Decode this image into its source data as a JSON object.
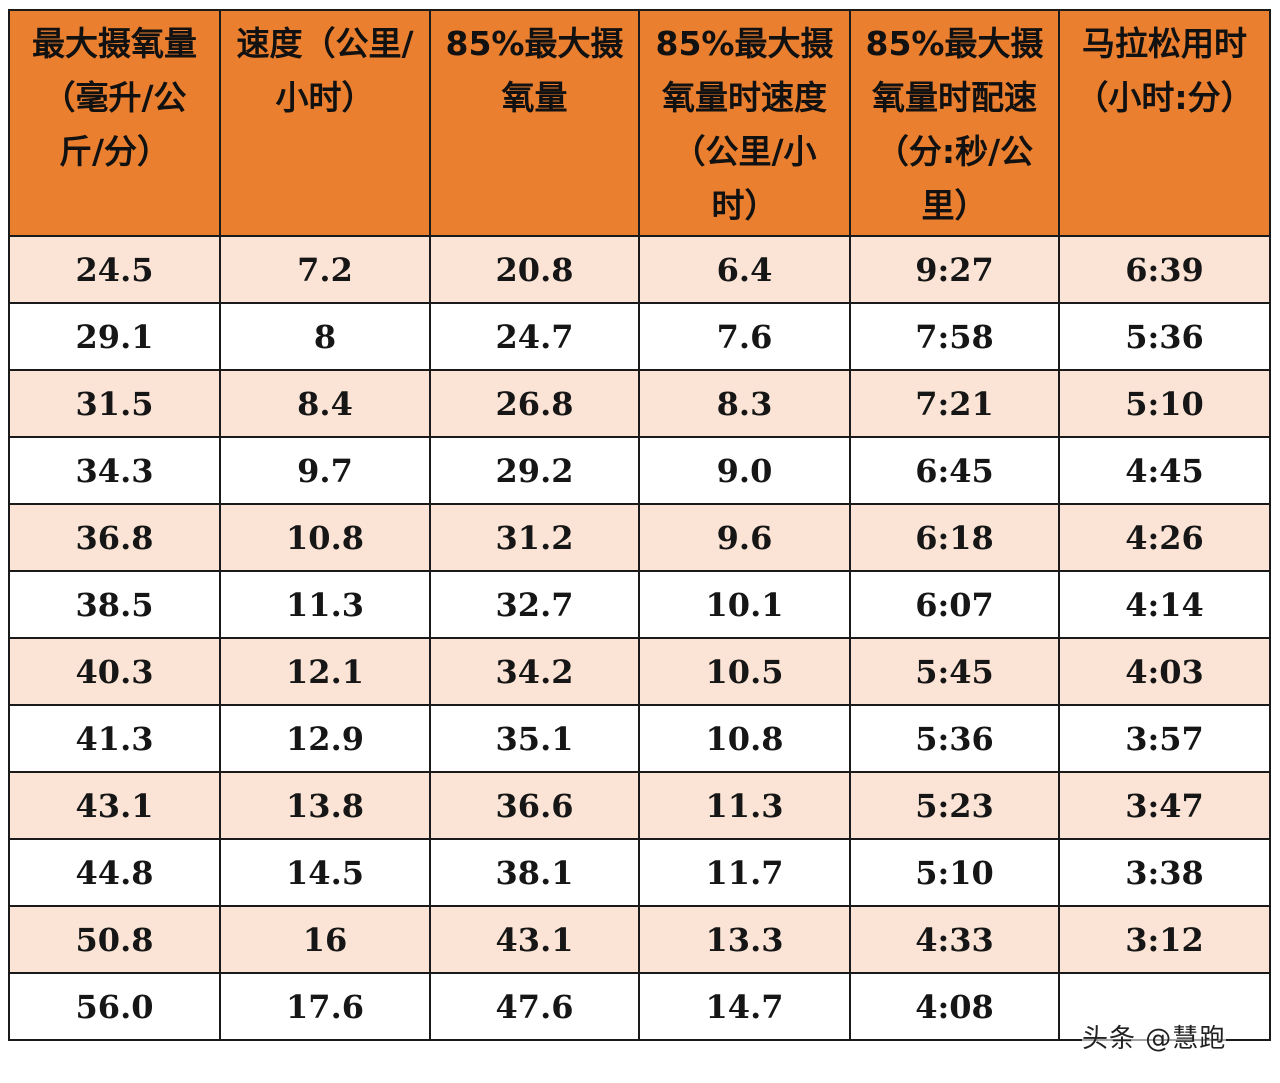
{
  "table": {
    "headers": [
      "最大摄氧量（毫升/公斤/分）",
      "速度（公里/小时）",
      "85%最大摄氧量",
      "85%最大摄氧量时速度（公里/小时）",
      "85%最大摄氧量时配速（分:秒/公里）",
      "马拉松用时（小时:分）"
    ],
    "rows": [
      [
        "24.5",
        "7.2",
        "20.8",
        "6.4",
        "9:27",
        "6:39"
      ],
      [
        "29.1",
        "8",
        "24.7",
        "7.6",
        "7:58",
        "5:36"
      ],
      [
        "31.5",
        "8.4",
        "26.8",
        "8.3",
        "7:21",
        "5:10"
      ],
      [
        "34.3",
        "9.7",
        "29.2",
        "9.0",
        "6:45",
        "4:45"
      ],
      [
        "36.8",
        "10.8",
        "31.2",
        "9.6",
        "6:18",
        "4:26"
      ],
      [
        "38.5",
        "11.3",
        "32.7",
        "10.1",
        "6:07",
        "4:14"
      ],
      [
        "40.3",
        "12.1",
        "34.2",
        "10.5",
        "5:45",
        "4:03"
      ],
      [
        "41.3",
        "12.9",
        "35.1",
        "10.8",
        "5:36",
        "3:57"
      ],
      [
        "43.1",
        "13.8",
        "36.6",
        "11.3",
        "5:23",
        "3:47"
      ],
      [
        "44.8",
        "14.5",
        "38.1",
        "11.7",
        "5:10",
        "3:38"
      ],
      [
        "50.8",
        "16",
        "43.1",
        "13.3",
        "4:33",
        "3:12"
      ],
      [
        "56.0",
        "17.6",
        "47.6",
        "14.7",
        "4:08",
        ""
      ]
    ]
  },
  "colors": {
    "header_bg": "#ea7f2f",
    "row_alt_bg": "#fbe4d6",
    "row_bg": "#ffffff",
    "border": "#1a1a1a"
  },
  "watermark": "头条 @慧跑"
}
